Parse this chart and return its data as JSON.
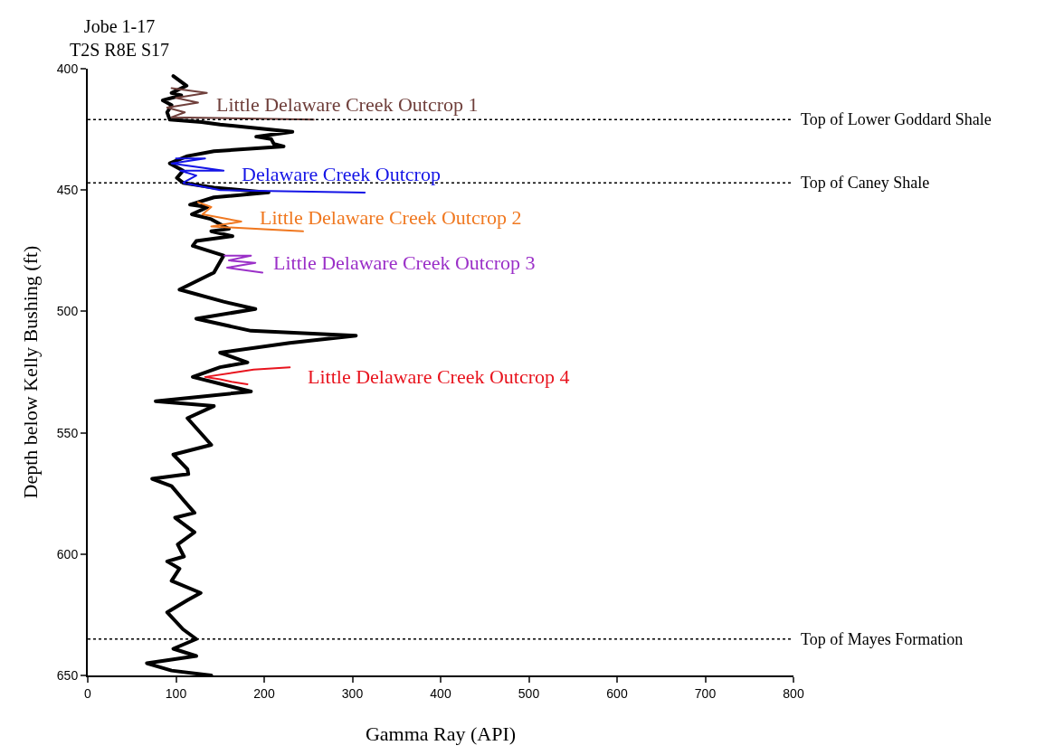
{
  "chart_data": {
    "type": "line",
    "title": "Jobe 1-17\nT2S R8E S17",
    "xlabel": "Gamma Ray (API)",
    "ylabel": "Depth below Kelly Bushing (ft)",
    "xlim": [
      0,
      800
    ],
    "xticks": [
      0,
      100,
      200,
      300,
      400,
      500,
      600,
      700,
      800
    ],
    "ylim": [
      650,
      400
    ],
    "yticks": [
      400,
      450,
      500,
      550,
      600,
      650
    ],
    "legend": false,
    "marker": "none",
    "line_style": "solid",
    "series": [
      {
        "color": "#000000",
        "x": [
          97,
          112,
          95,
          106,
          85,
          95,
          90,
          93,
          129,
          150,
          232,
          191,
          208,
          211,
          222,
          143,
          113,
          93,
          108,
          101,
          108,
          143,
          205,
          143,
          116,
          136,
          118,
          140,
          160,
          140,
          164,
          123,
          119,
          154,
          143,
          104,
          154,
          190,
          123,
          185,
          304,
          229,
          150,
          181,
          150,
          119,
          185,
          77,
          143,
          113,
          140,
          97,
          113,
          114,
          73,
          95,
          109,
          121,
          99,
          121,
          102,
          109,
          90,
          104,
          95,
          128,
          113,
          90,
          108,
          123,
          97,
          123,
          67,
          95,
          140
        ],
        "values": [
          403,
          407,
          410,
          411,
          413,
          415,
          418,
          421,
          422,
          423,
          426,
          428,
          429,
          431,
          432,
          434,
          436,
          439,
          442,
          445,
          447,
          449,
          451,
          453,
          456,
          457,
          460,
          462,
          466,
          467,
          469,
          471,
          473,
          477,
          484,
          491,
          496,
          499,
          503,
          508,
          510,
          513,
          517,
          521,
          523,
          527,
          533,
          537,
          539,
          544,
          555,
          559,
          565,
          567,
          569,
          572,
          578,
          583,
          585,
          591,
          596,
          601,
          603,
          606,
          611,
          616,
          619,
          624,
          631,
          635,
          639,
          642,
          645,
          648,
          650
        ]
      },
      {
        "name": "Little Delaware Creek Outcrop 1",
        "color": "#70403c",
        "x": [
          95,
          135,
          100,
          125,
          90,
          110,
          95,
          256
        ],
        "values": [
          408,
          410,
          412,
          414,
          416,
          418,
          420,
          421
        ]
      },
      {
        "name": "Delaware Creek Outcrop",
        "color": "#1414e6",
        "x": [
          100,
          133,
          95,
          154,
          105,
          123,
          108,
          150,
          314
        ],
        "values": [
          437,
          437,
          439,
          442,
          442,
          444,
          447,
          450,
          451
        ]
      },
      {
        "name": "Little Delaware Creek Outcrop 2",
        "color": "#f07820",
        "x": [
          125,
          140,
          130,
          174,
          140,
          244
        ],
        "values": [
          455,
          457,
          460,
          463,
          465,
          467
        ]
      },
      {
        "name": "Little Delaware Creek Outcrop 3",
        "color": "#9b30c8",
        "x": [
          155,
          185,
          160,
          190,
          158,
          198
        ],
        "values": [
          477,
          477,
          479,
          480,
          482,
          484
        ]
      },
      {
        "name": "Little Delaware Creek Outcrop 4",
        "color": "#e8141e",
        "x": [
          229,
          188,
          133,
          150,
          163,
          181
        ],
        "values": [
          523,
          524,
          527,
          528,
          529,
          530
        ]
      }
    ],
    "ref_lines": [
      {
        "axis": "y",
        "value": 421,
        "label": "Top of Lower Goddard Shale",
        "color": "#000000",
        "line_style": "dotted"
      },
      {
        "axis": "y",
        "value": 447,
        "label": "Top of Caney Shale",
        "color": "#000000",
        "line_style": "dotted"
      },
      {
        "axis": "y",
        "value": 635,
        "label": "Top of Mayes Formation",
        "color": "#000000",
        "line_style": "dotted"
      }
    ]
  }
}
